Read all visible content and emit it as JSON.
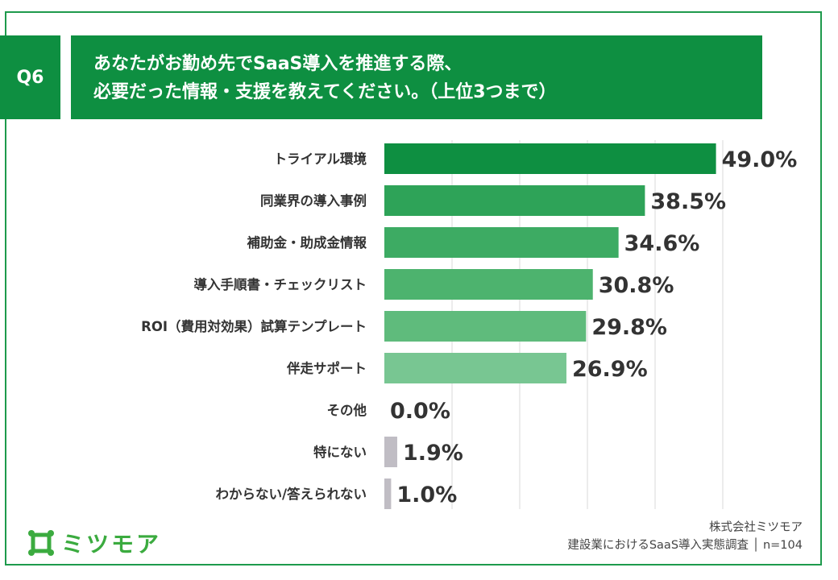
{
  "question_badge": "Q6",
  "title_lines": [
    "あなたがお勤め先でSaaS導入を推進する際、",
    "必要だった情報・支援を教えてください。（上位3つまで）"
  ],
  "chart_data": {
    "type": "bar",
    "orientation": "horizontal",
    "categories": [
      "トライアル環境",
      "同業界の導入事例",
      "補助金・助成金情報",
      "導入手順書・チェックリスト",
      "ROI（費用対効果）試算テンプレート",
      "伴走サポート",
      "その他",
      "特にない",
      "わからない/答えられない"
    ],
    "values": [
      49.0,
      38.5,
      34.6,
      30.8,
      29.8,
      26.9,
      0.0,
      1.9,
      1.0
    ],
    "value_labels": [
      "49.0%",
      "38.5%",
      "34.6%",
      "30.8%",
      "29.8%",
      "26.9%",
      "0.0%",
      "1.9%",
      "1.0%"
    ],
    "bar_colors": [
      "#0e8f41",
      "#2ea358",
      "#3dab63",
      "#4db36e",
      "#5fbb7c",
      "#78c692",
      "#c0bdc4",
      "#c0bdc4",
      "#c0bdc4"
    ],
    "xlim": [
      0,
      50
    ],
    "grid": true,
    "unit": "%"
  },
  "footer": {
    "logo_text": "ミツモア",
    "logo_icon": "mitsumore-logo-icon",
    "company": "株式会社ミツモア",
    "survey": "建設業におけるSaaS導入実態調査 │ n=104"
  },
  "colors": {
    "brand_green": "#0e8f41",
    "logo_green": "#3bab3f"
  }
}
